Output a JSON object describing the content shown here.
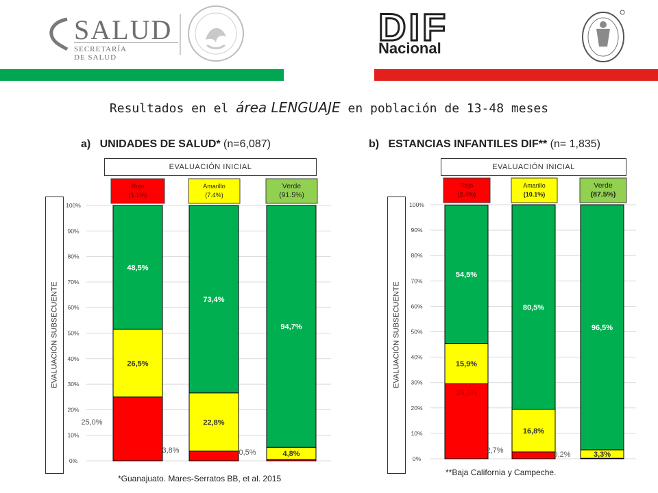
{
  "header": {
    "salud_word": "SALUD",
    "salud_sub": "SECRETARÍA DE SALUD",
    "dif_word": "DIF",
    "dif_sub": "Nacional",
    "seal_icon": "mexican-seal-icon",
    "hospital_icon": "hospital-seal-icon"
  },
  "title": {
    "prefix": "Resultados en el ",
    "em": "área LENGUAJE",
    "suffix": " en población de 13-48 meses"
  },
  "colors": {
    "red": "#ff0000",
    "yellow": "#ffff00",
    "green": "#00b050",
    "green_light": "#92d050",
    "brand_green": "#00a651",
    "brand_red": "#e4201f"
  },
  "chart_data": [
    {
      "type": "bar",
      "stacked": true,
      "panel_letter": "a)",
      "title": "UNIDADES DE SALUD*",
      "title_n": "(n=6,087)",
      "xlabel": "EVALUACIÓN INICIAL",
      "ylabel": "EVALUACIÓN SUBSECUENTE",
      "ylim": [
        0,
        100
      ],
      "yticks": [
        "0%",
        "10%",
        "20%",
        "30%",
        "40%",
        "50%",
        "60%",
        "70%",
        "80%",
        "90%",
        "100%"
      ],
      "grid": true,
      "categories": [
        {
          "name": "Rojo",
          "share": "(1.1%)"
        },
        {
          "name": "Amarillo",
          "share": "(7.4%)"
        },
        {
          "name": "Verde",
          "share": "(91.5%)"
        }
      ],
      "series": [
        {
          "values": [
            25.0,
            3.8,
            0.5
          ],
          "labels": [
            "25,0%",
            "3,8%",
            "0,5%"
          ]
        },
        {
          "values": [
            26.5,
            22.8,
            4.8
          ],
          "labels": [
            "26,5%",
            "22,8%",
            "4,8%"
          ]
        },
        {
          "values": [
            48.5,
            73.4,
            94.7
          ],
          "labels": [
            "48,5%",
            "73,4%",
            "94,7%"
          ]
        }
      ],
      "footnote": "*Guanajuato. Mares-Serratos BB, et al. 2015"
    },
    {
      "type": "bar",
      "stacked": true,
      "panel_letter": "b)",
      "title": "ESTANCIAS INFANTILES DIF**",
      "title_n": "(n= 1,835)",
      "xlabel": "EVALUACIÓN INICIAL",
      "ylabel": "EVALUACIÓN SUBSECUENTE",
      "ylim": [
        0,
        100
      ],
      "yticks": [
        "0%",
        "10%",
        "20%",
        "30%",
        "40%",
        "50%",
        "60%",
        "70%",
        "80%",
        "90%",
        "100%"
      ],
      "grid": true,
      "categories": [
        {
          "name": "Rojo",
          "share": "(2.4%)"
        },
        {
          "name": "Amarillo",
          "share": "(10.1%)"
        },
        {
          "name": "Verde",
          "share": "(87.5%)"
        }
      ],
      "series": [
        {
          "values": [
            29.5,
            2.7,
            0.2
          ],
          "labels": [
            "29,5%",
            "2,7%",
            "0,2%"
          ]
        },
        {
          "values": [
            15.9,
            16.8,
            3.3
          ],
          "labels": [
            "15,9%",
            "16,8%",
            "3,3%"
          ]
        },
        {
          "values": [
            54.5,
            80.5,
            96.5
          ],
          "labels": [
            "54,5%",
            "80,5%",
            "96,5%"
          ]
        }
      ],
      "footnote": "**Baja California y Campeche."
    }
  ]
}
